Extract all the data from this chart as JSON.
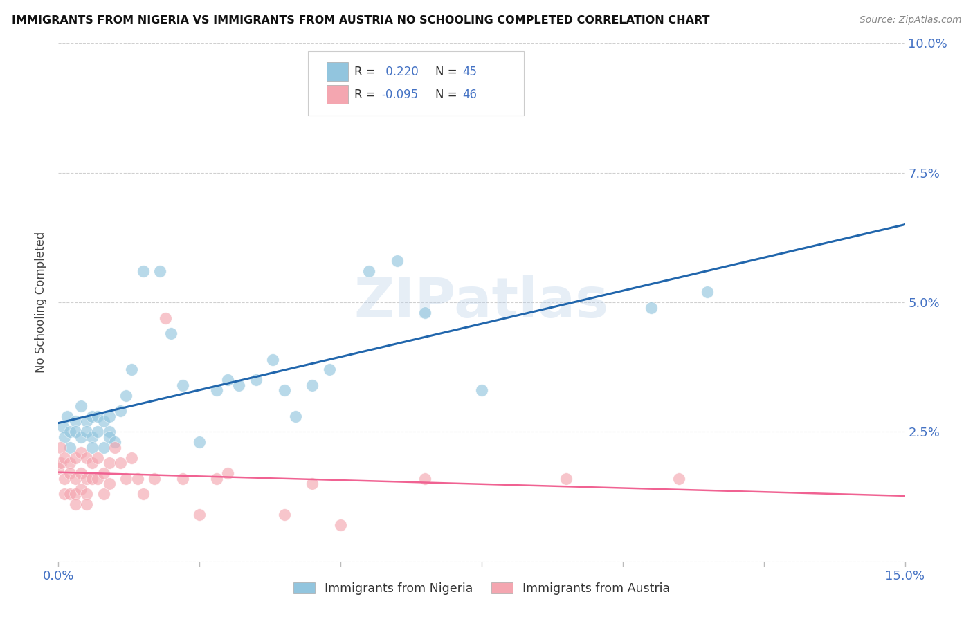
{
  "title": "IMMIGRANTS FROM NIGERIA VS IMMIGRANTS FROM AUSTRIA NO SCHOOLING COMPLETED CORRELATION CHART",
  "source": "Source: ZipAtlas.com",
  "ylabel": "No Schooling Completed",
  "xlim": [
    0.0,
    0.15
  ],
  "ylim": [
    0.0,
    0.1
  ],
  "xticks": [
    0.0,
    0.025,
    0.05,
    0.075,
    0.1,
    0.125,
    0.15
  ],
  "yticks": [
    0.0,
    0.025,
    0.05,
    0.075,
    0.1
  ],
  "ytick_labels": [
    "",
    "2.5%",
    "5.0%",
    "7.5%",
    "10.0%"
  ],
  "xtick_labels_show": [
    "0.0%",
    "15.0%"
  ],
  "nigeria_R": 0.22,
  "nigeria_N": 45,
  "austria_R": -0.095,
  "austria_N": 46,
  "nigeria_color": "#92c5de",
  "austria_color": "#f4a6b0",
  "nigeria_line_color": "#2166ac",
  "austria_line_color": "#f06292",
  "background_color": "#ffffff",
  "grid_color": "#d0d0d0",
  "axis_color": "#4472C4",
  "watermark": "ZIPatlas",
  "nigeria_x": [
    0.0008,
    0.001,
    0.0015,
    0.002,
    0.002,
    0.003,
    0.003,
    0.004,
    0.004,
    0.005,
    0.005,
    0.006,
    0.006,
    0.006,
    0.007,
    0.007,
    0.008,
    0.008,
    0.009,
    0.009,
    0.009,
    0.01,
    0.011,
    0.012,
    0.013,
    0.015,
    0.018,
    0.02,
    0.022,
    0.025,
    0.028,
    0.03,
    0.032,
    0.035,
    0.038,
    0.04,
    0.042,
    0.045,
    0.048,
    0.055,
    0.06,
    0.065,
    0.075,
    0.105,
    0.115
  ],
  "nigeria_y": [
    0.026,
    0.024,
    0.028,
    0.022,
    0.025,
    0.027,
    0.025,
    0.03,
    0.024,
    0.027,
    0.025,
    0.028,
    0.024,
    0.022,
    0.028,
    0.025,
    0.027,
    0.022,
    0.025,
    0.028,
    0.024,
    0.023,
    0.029,
    0.032,
    0.037,
    0.056,
    0.056,
    0.044,
    0.034,
    0.023,
    0.033,
    0.035,
    0.034,
    0.035,
    0.039,
    0.033,
    0.028,
    0.034,
    0.037,
    0.056,
    0.058,
    0.048,
    0.033,
    0.049,
    0.052
  ],
  "austria_x": [
    0.0,
    0.0003,
    0.0005,
    0.001,
    0.001,
    0.001,
    0.002,
    0.002,
    0.002,
    0.003,
    0.003,
    0.003,
    0.003,
    0.004,
    0.004,
    0.004,
    0.005,
    0.005,
    0.005,
    0.005,
    0.006,
    0.006,
    0.007,
    0.007,
    0.008,
    0.008,
    0.009,
    0.009,
    0.01,
    0.011,
    0.012,
    0.013,
    0.014,
    0.015,
    0.017,
    0.019,
    0.022,
    0.025,
    0.028,
    0.03,
    0.04,
    0.045,
    0.05,
    0.065,
    0.09,
    0.11
  ],
  "austria_y": [
    0.018,
    0.022,
    0.019,
    0.02,
    0.016,
    0.013,
    0.019,
    0.017,
    0.013,
    0.02,
    0.016,
    0.013,
    0.011,
    0.021,
    0.017,
    0.014,
    0.02,
    0.016,
    0.013,
    0.011,
    0.019,
    0.016,
    0.02,
    0.016,
    0.017,
    0.013,
    0.019,
    0.015,
    0.022,
    0.019,
    0.016,
    0.02,
    0.016,
    0.013,
    0.016,
    0.047,
    0.016,
    0.009,
    0.016,
    0.017,
    0.009,
    0.015,
    0.007,
    0.016,
    0.016,
    0.016
  ]
}
